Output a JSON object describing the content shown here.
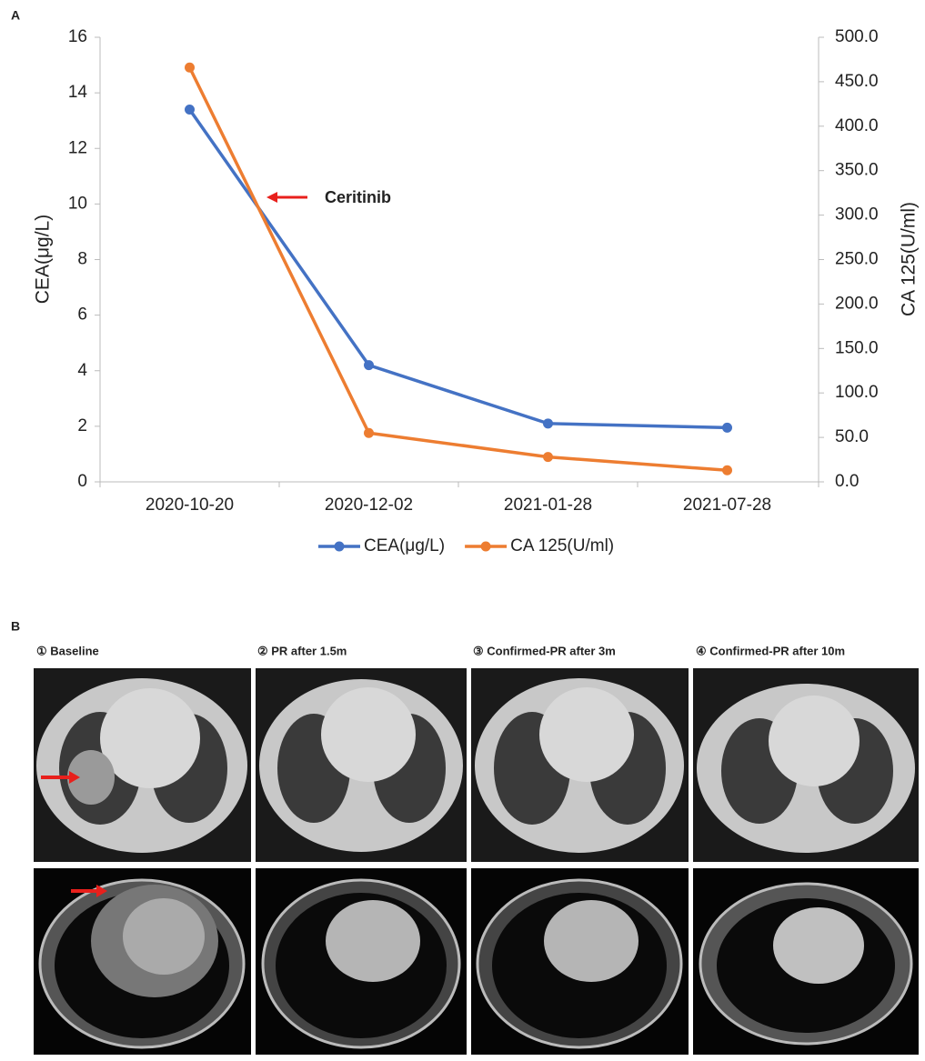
{
  "chart_data": {
    "type": "line",
    "panel_label": "A",
    "ylabel": "CEA(μg/L)",
    "y2label": "CA 125(U/ml)",
    "annotation": "Ceritinib",
    "categories": [
      "2020-10-20",
      "2020-12-02",
      "2021-01-28",
      "2021-07-28"
    ],
    "series": [
      {
        "name": "CEA(μg/L)",
        "color": "#4472c4",
        "values": [
          13.4,
          4.2,
          2.1,
          1.95
        ]
      },
      {
        "name": "CA 125(U/ml)",
        "color": "#ed7d31",
        "axis": "y2",
        "values": [
          466,
          55,
          28,
          13
        ]
      }
    ],
    "ylim": [
      0,
      16
    ],
    "yticks": [
      0,
      2,
      4,
      6,
      8,
      10,
      12,
      14,
      16
    ],
    "y2lim": [
      0,
      500
    ],
    "y2ticks": [
      {
        "value": 0,
        "label": "0.0"
      },
      {
        "value": 50,
        "label": "50.0"
      },
      {
        "value": 100,
        "label": "100.0"
      },
      {
        "value": 150,
        "label": "150.0"
      },
      {
        "value": 200,
        "label": "200.0"
      },
      {
        "value": 250,
        "label": "250.0"
      },
      {
        "value": 300,
        "label": "300.0"
      },
      {
        "value": 350,
        "label": "350.0"
      },
      {
        "value": 400,
        "label": "400.0"
      },
      {
        "value": 450,
        "label": "450.0"
      },
      {
        "value": 500,
        "label": "500.0"
      }
    ],
    "grid": false,
    "legend": "bottom"
  },
  "panel_b": {
    "label": "B",
    "captions": [
      "① Baseline",
      "② PR after 1.5m",
      "③ Confirmed-PR after 3m",
      "④ Confirmed-PR after 10m"
    ]
  }
}
